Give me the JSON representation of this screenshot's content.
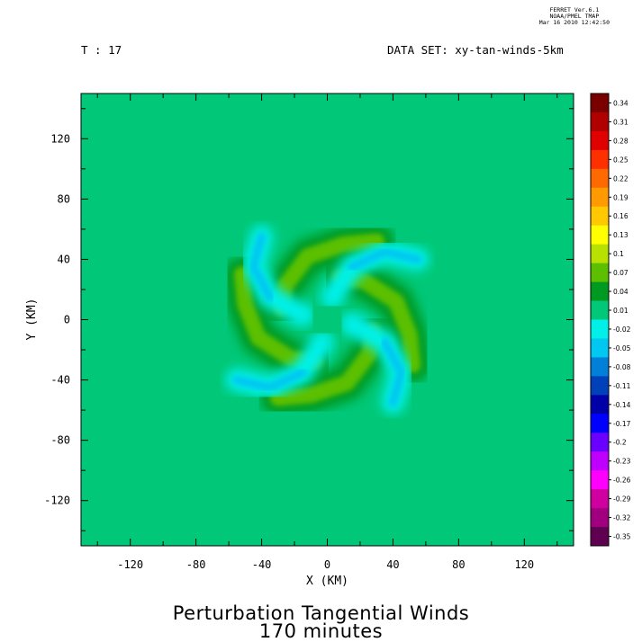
{
  "stamp": {
    "line1": "FERRET  Ver.6.1",
    "line2": "NOAA/PMEL TMAP",
    "line3": "Mar 16 2010 12:42:50"
  },
  "header": {
    "time_label": "T : 17",
    "dataset_label": "DATA SET: xy-tan-winds-5km"
  },
  "bottom_title": {
    "line1": "Perturbation Tangential Winds",
    "line2": "170 minutes"
  },
  "chart_data": {
    "type": "heatmap",
    "title": "Perturbation Tangential Winds",
    "subtitle": "170 minutes",
    "xlabel": "X (KM)",
    "ylabel": "Y (KM)",
    "xlim": [
      -150,
      150
    ],
    "ylim": [
      -150,
      150
    ],
    "x_ticks": [
      -120,
      -80,
      -40,
      0,
      40,
      80,
      120
    ],
    "y_ticks": [
      -120,
      -80,
      -40,
      0,
      40,
      80,
      120
    ],
    "background_value": 0.01,
    "colorbar": {
      "labels": [
        "0.34",
        "0.31",
        "0.28",
        "0.25",
        "0.22",
        "0.19",
        "0.16",
        "0.13",
        "0.1",
        "0.07",
        "0.04",
        "0.01",
        "-0.02",
        "-0.05",
        "-0.08",
        "-0.11",
        "-0.14",
        "-0.17",
        "-0.2",
        "-0.23",
        "-0.26",
        "-0.29",
        "-0.32",
        "-0.35"
      ],
      "colors": [
        "#7a0000",
        "#b00000",
        "#e00000",
        "#ff3000",
        "#ff6a00",
        "#ff9a00",
        "#ffc800",
        "#ffff00",
        "#b8e000",
        "#5cc000",
        "#009a20",
        "#00c878",
        "#00f0e8",
        "#00c8f0",
        "#0080d8",
        "#0040b8",
        "#0000a8",
        "#0000ff",
        "#6a00ff",
        "#c000ff",
        "#ff00ff",
        "#d000a0",
        "#a00080",
        "#600050"
      ]
    },
    "features": [
      {
        "type": "positive_arm",
        "peak_value": 0.07,
        "points": [
          [
            30,
            52
          ],
          [
            10,
            50
          ],
          [
            -12,
            42
          ],
          [
            -26,
            22
          ],
          [
            -28,
            8
          ]
        ]
      },
      {
        "type": "positive_arm",
        "peak_value": 0.07,
        "points": [
          [
            -52,
            30
          ],
          [
            -50,
            10
          ],
          [
            -42,
            -12
          ],
          [
            -22,
            -26
          ],
          [
            -8,
            -28
          ]
        ]
      },
      {
        "type": "positive_arm",
        "peak_value": 0.07,
        "points": [
          [
            -30,
            -52
          ],
          [
            -10,
            -50
          ],
          [
            12,
            -42
          ],
          [
            26,
            -22
          ],
          [
            28,
            -8
          ]
        ]
      },
      {
        "type": "positive_arm",
        "peak_value": 0.07,
        "points": [
          [
            52,
            -30
          ],
          [
            50,
            -10
          ],
          [
            42,
            12
          ],
          [
            22,
            26
          ],
          [
            8,
            28
          ]
        ]
      },
      {
        "type": "negative_arm",
        "peak_value": -0.04,
        "points": [
          [
            -40,
            55
          ],
          [
            -45,
            35
          ],
          [
            -35,
            15
          ],
          [
            -15,
            3
          ]
        ]
      },
      {
        "type": "negative_arm",
        "peak_value": -0.04,
        "points": [
          [
            -55,
            -40
          ],
          [
            -35,
            -45
          ],
          [
            -15,
            -35
          ],
          [
            -3,
            -15
          ]
        ]
      },
      {
        "type": "negative_arm",
        "peak_value": -0.04,
        "points": [
          [
            40,
            -55
          ],
          [
            45,
            -35
          ],
          [
            35,
            -15
          ],
          [
            15,
            -3
          ]
        ]
      },
      {
        "type": "negative_arm",
        "peak_value": -0.04,
        "points": [
          [
            55,
            40
          ],
          [
            35,
            45
          ],
          [
            15,
            35
          ],
          [
            3,
            15
          ]
        ]
      }
    ]
  }
}
